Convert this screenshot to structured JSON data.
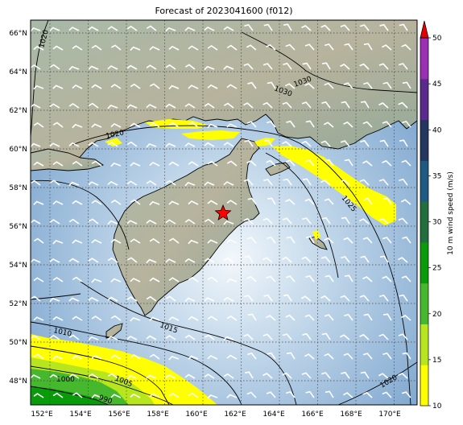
{
  "title": "Forecast of 2023041600 (f012)",
  "colorbar": {
    "label": "10 m wind speed (m/s)",
    "ticks": [
      "10",
      "15",
      "20",
      "25",
      "30",
      "35",
      "40",
      "45",
      "50"
    ],
    "colors": [
      "#ffff00",
      "#b7e61e",
      "#46b82d",
      "#0a9b0a",
      "#226e3c",
      "#1e5a82",
      "#23375f",
      "#5a2a8c",
      "#9b30b4"
    ],
    "extend_color": "#e60000"
  },
  "axes": {
    "lon_labels": [
      "152°E",
      "154°E",
      "156°E",
      "158°E",
      "160°E",
      "162°E",
      "164°E",
      "166°E",
      "168°E",
      "170°E"
    ],
    "lat_labels": [
      "66°N",
      "64°N",
      "62°N",
      "60°N",
      "58°N",
      "56°N",
      "54°N",
      "52°N",
      "50°N",
      "48°N"
    ]
  },
  "contours": {
    "labels": [
      "1020",
      "1030",
      "1030",
      "1020",
      "1025",
      "1015",
      "1010",
      "1000",
      "1005",
      "990",
      "1020"
    ]
  },
  "marker": {
    "symbol": "red-star"
  },
  "colors": {
    "ocean": "#c9dcee",
    "land": "#9fb5a4",
    "wind_yellow": "#ffff00"
  }
}
